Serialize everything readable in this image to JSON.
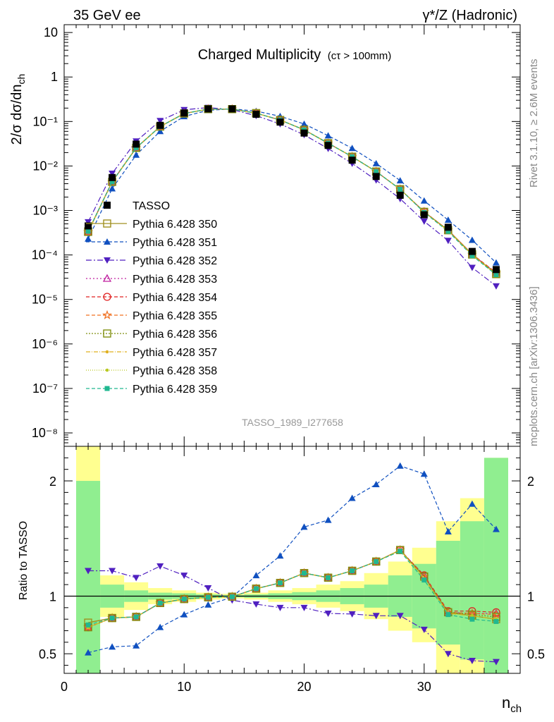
{
  "header": {
    "left": "35 GeV ee",
    "right": "γ*/Z (Hadronic)"
  },
  "side_text": {
    "rivet": "Rivet 3.1.10, ≥ 2.6M events",
    "mcplots": "mcplots.cern.ch [arXiv:1306.3436]"
  },
  "chart_data": [
    {
      "type": "line",
      "title": "Charged Multiplicity",
      "title_note": "(cτ > 100mm)",
      "analysis_id": "TASSO_1989_I277658",
      "ylabel": "2/σ dσ/dn",
      "ylabel_sub": "ch",
      "yscale": "log",
      "ylim": [
        5e-09,
        15
      ],
      "xlim": [
        0,
        38
      ],
      "yticks": [
        "10",
        "1",
        "10⁻¹",
        "10⁻²",
        "10⁻³",
        "10⁻⁴",
        "10⁻⁵",
        "10⁻⁶",
        "10⁻⁷",
        "10⁻⁸"
      ],
      "legend_position": "left-center",
      "x": [
        2,
        4,
        6,
        8,
        10,
        12,
        14,
        16,
        18,
        20,
        22,
        24,
        26,
        28,
        30,
        32,
        34,
        36
      ],
      "data": {
        "name": "TASSO",
        "color": "#000000",
        "marker": "square-filled",
        "values": [
          0.00045,
          0.0055,
          0.031,
          0.082,
          0.155,
          0.192,
          0.192,
          0.145,
          0.097,
          0.055,
          0.029,
          0.0135,
          0.0058,
          0.0022,
          0.0008,
          0.00042,
          0.00012,
          4.7e-05
        ]
      },
      "series": [
        {
          "name": "Pythia 6.428 350",
          "color": "#a09020",
          "dash": "solid",
          "marker": "square-open",
          "values": [
            0.00034,
            0.0044,
            0.0255,
            0.077,
            0.151,
            0.19,
            0.19,
            0.154,
            0.108,
            0.065,
            0.0325,
            0.0162,
            0.0075,
            0.003,
            0.00093,
            0.00036,
            0.000104,
            3.7e-05
          ]
        },
        {
          "name": "Pythia 6.428 351",
          "color": "#1050c0",
          "dash": "5,3",
          "marker": "triangle-up-filled",
          "values": [
            0.00023,
            0.0031,
            0.0177,
            0.06,
            0.13,
            0.178,
            0.192,
            0.171,
            0.131,
            0.088,
            0.048,
            0.025,
            0.0114,
            0.0047,
            0.00165,
            0.00061,
            0.000216,
            6.7e-05
          ]
        },
        {
          "name": "Pythia 6.428 352",
          "color": "#5020c0",
          "dash": "8,3,2,3",
          "marker": "triangle-down-filled",
          "values": [
            0.00055,
            0.0068,
            0.036,
            0.104,
            0.183,
            0.205,
            0.185,
            0.135,
            0.088,
            0.05,
            0.0246,
            0.0114,
            0.0048,
            0.00183,
            0.00057,
            0.00021,
            5.2e-05,
            2e-05
          ]
        },
        {
          "name": "Pythia 6.428 353",
          "color": "#c020a0",
          "dash": "2,3",
          "marker": "triangle-up-open",
          "values": [
            0.00033,
            0.0044,
            0.0256,
            0.077,
            0.151,
            0.19,
            0.19,
            0.154,
            0.108,
            0.065,
            0.0325,
            0.0162,
            0.0075,
            0.003,
            0.00094,
            0.00036,
            0.000102,
            4e-05
          ]
        },
        {
          "name": "Pythia 6.428 354",
          "color": "#e02020",
          "dash": "5,3",
          "marker": "circle-open",
          "values": [
            0.00033,
            0.0045,
            0.0256,
            0.077,
            0.151,
            0.19,
            0.19,
            0.154,
            0.108,
            0.065,
            0.0325,
            0.0162,
            0.0075,
            0.003,
            0.00094,
            0.00036,
            0.000104,
            4e-05
          ]
        },
        {
          "name": "Pythia 6.428 355",
          "color": "#f07020",
          "dash": "5,3",
          "marker": "star-open",
          "values": [
            0.00033,
            0.0044,
            0.0256,
            0.077,
            0.151,
            0.19,
            0.19,
            0.154,
            0.108,
            0.065,
            0.0325,
            0.0162,
            0.0075,
            0.003,
            0.00093,
            0.00036,
            0.000102,
            3.9e-05
          ]
        },
        {
          "name": "Pythia 6.428 356",
          "color": "#809010",
          "dash": "2,2",
          "marker": "square-open",
          "values": [
            0.00033,
            0.0044,
            0.0256,
            0.077,
            0.151,
            0.19,
            0.19,
            0.154,
            0.108,
            0.065,
            0.0325,
            0.0162,
            0.0075,
            0.003,
            0.00093,
            0.00036,
            0.000102,
            3.8e-05
          ]
        },
        {
          "name": "Pythia 6.428 357",
          "color": "#e0b020",
          "dash": "6,2,1,2",
          "marker": "dot-filled",
          "values": [
            0.00033,
            0.0044,
            0.0256,
            0.077,
            0.151,
            0.19,
            0.19,
            0.154,
            0.108,
            0.065,
            0.0325,
            0.0162,
            0.0075,
            0.003,
            0.00092,
            0.00035,
            0.0001,
            3.7e-05
          ]
        },
        {
          "name": "Pythia 6.428 358",
          "color": "#b8c820",
          "dash": "1,2",
          "marker": "dot-filled",
          "values": [
            0.00033,
            0.0044,
            0.0256,
            0.077,
            0.151,
            0.19,
            0.19,
            0.154,
            0.108,
            0.065,
            0.0325,
            0.0162,
            0.0075,
            0.003,
            0.00092,
            0.00035,
            0.0001,
            3.7e-05
          ]
        },
        {
          "name": "Pythia 6.428 359",
          "color": "#20b890",
          "dash": "5,3",
          "marker": "square-filled-small",
          "values": [
            0.00034,
            0.0044,
            0.0256,
            0.077,
            0.151,
            0.19,
            0.19,
            0.154,
            0.108,
            0.065,
            0.0325,
            0.0162,
            0.0075,
            0.003,
            0.0009,
            0.00034,
            9.6e-05,
            3.6e-05
          ]
        }
      ]
    },
    {
      "type": "line",
      "ylabel": "Ratio to TASSO",
      "xlabel": "n",
      "xlabel_sub": "ch",
      "ylim": [
        0.33,
        2.3
      ],
      "xlim": [
        0,
        38
      ],
      "xticks": [
        "0",
        "10",
        "20",
        "30"
      ],
      "yticks": [
        "0.5",
        "1",
        "2"
      ],
      "uncertainty_bands": {
        "edges": [
          1,
          3,
          5,
          7,
          9,
          11,
          13,
          15,
          17,
          19,
          21,
          23,
          25,
          27,
          29,
          31,
          33,
          35,
          37
        ],
        "stat_color": "#90ee90",
        "total_color": "#ffff90",
        "stat": [
          [
            0.32,
            2.0
          ],
          [
            0.9,
            1.1
          ],
          [
            0.95,
            1.05
          ],
          [
            0.97,
            1.03
          ],
          [
            0.975,
            1.025
          ],
          [
            0.985,
            1.015
          ],
          [
            0.99,
            1.01
          ],
          [
            0.985,
            1.015
          ],
          [
            0.975,
            1.025
          ],
          [
            0.965,
            1.035
          ],
          [
            0.95,
            1.05
          ],
          [
            0.93,
            1.07
          ],
          [
            0.9,
            1.1
          ],
          [
            0.82,
            1.18
          ],
          [
            0.72,
            1.28
          ],
          [
            0.58,
            1.48
          ],
          [
            0.45,
            1.65
          ],
          [
            0.32,
            2.2
          ]
        ],
        "total": [
          [
            0.32,
            2.5
          ],
          [
            0.82,
            1.18
          ],
          [
            0.88,
            1.12
          ],
          [
            0.93,
            1.07
          ],
          [
            0.95,
            1.05
          ],
          [
            0.97,
            1.03
          ],
          [
            0.98,
            1.02
          ],
          [
            0.97,
            1.03
          ],
          [
            0.95,
            1.05
          ],
          [
            0.93,
            1.07
          ],
          [
            0.9,
            1.1
          ],
          [
            0.87,
            1.13
          ],
          [
            0.8,
            1.2
          ],
          [
            0.7,
            1.3
          ],
          [
            0.6,
            1.42
          ],
          [
            0.33,
            1.65
          ],
          [
            0.33,
            1.85
          ],
          [
            0.33,
            2.2
          ]
        ]
      },
      "series": [
        {
          "name": "Pythia 6.428 350",
          "values": [
            0.77,
            0.81,
            0.82,
            0.94,
            0.975,
            0.99,
            0.995,
            1.065,
            1.115,
            1.2,
            1.16,
            1.22,
            1.3,
            1.4,
            1.17,
            0.86,
            0.83,
            0.8
          ]
        },
        {
          "name": "Pythia 6.428 351",
          "values": [
            0.51,
            0.56,
            0.57,
            0.73,
            0.84,
            0.925,
            0.99,
            1.18,
            1.35,
            1.6,
            1.66,
            1.85,
            1.97,
            2.13,
            2.06,
            1.56,
            1.8,
            1.58
          ]
        },
        {
          "name": "Pythia 6.428 352",
          "values": [
            1.22,
            1.22,
            1.16,
            1.26,
            1.18,
            1.07,
            0.965,
            0.93,
            0.9,
            0.9,
            0.85,
            0.845,
            0.83,
            0.83,
            0.71,
            0.5,
            0.44,
            0.43
          ]
        },
        {
          "name": "Pythia 6.428 353",
          "values": [
            0.73,
            0.81,
            0.82,
            0.94,
            0.975,
            0.99,
            0.995,
            1.065,
            1.115,
            1.2,
            1.16,
            1.22,
            1.3,
            1.4,
            1.18,
            0.86,
            0.85,
            0.85
          ]
        },
        {
          "name": "Pythia 6.428 354",
          "values": [
            0.73,
            0.81,
            0.82,
            0.94,
            0.975,
            0.99,
            0.995,
            1.065,
            1.115,
            1.2,
            1.16,
            1.22,
            1.3,
            1.4,
            1.18,
            0.87,
            0.87,
            0.86
          ]
        },
        {
          "name": "Pythia 6.428 355",
          "values": [
            0.73,
            0.81,
            0.82,
            0.94,
            0.975,
            0.99,
            0.995,
            1.065,
            1.115,
            1.2,
            1.16,
            1.22,
            1.3,
            1.4,
            1.17,
            0.86,
            0.85,
            0.84
          ]
        },
        {
          "name": "Pythia 6.428 356",
          "values": [
            0.73,
            0.81,
            0.82,
            0.94,
            0.975,
            0.99,
            0.995,
            1.065,
            1.115,
            1.2,
            1.16,
            1.22,
            1.3,
            1.4,
            1.17,
            0.86,
            0.84,
            0.82
          ]
        },
        {
          "name": "Pythia 6.428 357",
          "values": [
            0.73,
            0.81,
            0.82,
            0.94,
            0.975,
            0.99,
            0.995,
            1.065,
            1.115,
            1.2,
            1.16,
            1.22,
            1.3,
            1.4,
            1.15,
            0.85,
            0.83,
            0.8
          ]
        },
        {
          "name": "Pythia 6.428 358",
          "values": [
            0.73,
            0.81,
            0.82,
            0.94,
            0.975,
            0.99,
            0.995,
            1.065,
            1.115,
            1.2,
            1.16,
            1.22,
            1.3,
            1.4,
            1.15,
            0.85,
            0.83,
            0.8
          ]
        },
        {
          "name": "Pythia 6.428 359",
          "values": [
            0.75,
            0.81,
            0.82,
            0.94,
            0.975,
            0.99,
            0.995,
            1.065,
            1.115,
            1.2,
            1.16,
            1.22,
            1.3,
            1.39,
            1.14,
            0.84,
            0.8,
            0.78
          ]
        }
      ]
    }
  ]
}
